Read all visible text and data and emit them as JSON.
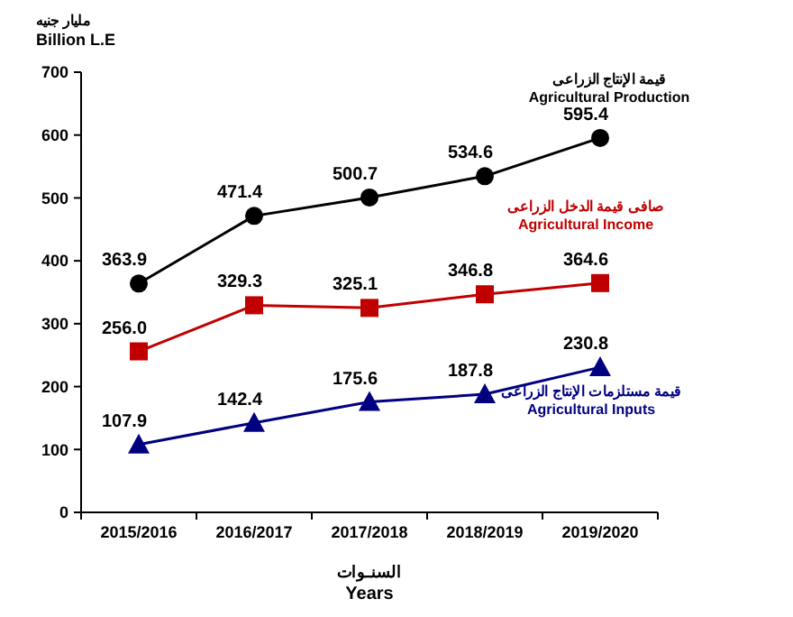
{
  "chart_data": {
    "type": "line",
    "ylabel": "مليار جنيه\nBillion L.E",
    "xlabel": "السنـوات\nYears",
    "categories": [
      "2015/2016",
      "2016/2017",
      "2017/2018",
      "2018/2019",
      "2019/2020"
    ],
    "series": [
      {
        "name": "قيمة الإنتاج الزراعى\nAgricultural Production",
        "color": "#000000",
        "marker": "circle",
        "values": [
          363.9,
          471.4,
          500.7,
          534.6,
          595.4
        ],
        "value_labels": [
          "363.9",
          "471.4",
          "500.7",
          "534.6",
          "595.4"
        ]
      },
      {
        "name": "صافى قيمة الدخل الزراعى\nAgricultural Income",
        "color": "#c00000",
        "marker": "square",
        "values": [
          256.0,
          329.3,
          325.1,
          346.8,
          364.6
        ],
        "value_labels": [
          "256.0",
          "329.3",
          "325.1",
          "346.8",
          "364.6"
        ]
      },
      {
        "name": "قيمة مستلزمات الإنتاج الزراعى\nAgricultural Inputs",
        "color": "#000080",
        "marker": "triangle",
        "values": [
          107.9,
          142.4,
          175.6,
          187.8,
          230.8
        ],
        "value_labels": [
          "107.9",
          "142.4",
          "175.6",
          "187.8",
          "230.8"
        ]
      }
    ],
    "ylim": [
      0,
      700
    ],
    "yticks": [
      0,
      100,
      200,
      300,
      400,
      500,
      600,
      700
    ],
    "grid": false,
    "line_style": "solid"
  }
}
